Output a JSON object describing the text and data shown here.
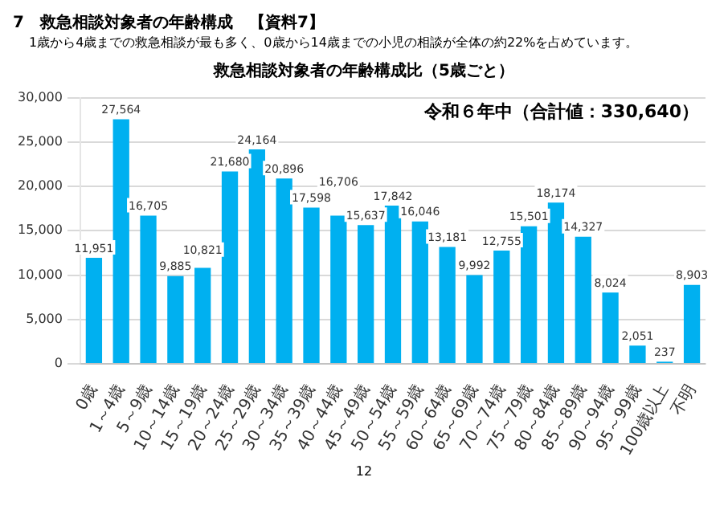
{
  "chart_data": {
    "type": "bar",
    "title": "救急相談対象者の年齢構成比（5歳ごと）",
    "annotations": [
      "7　救急相談対象者の年齢構成　【資料7】",
      "1歳から4歳までの救急相談が最も多く、0歳から14歳までの小児の相談が全体の約22%を占めています。",
      "令和６年中（合計値：330,640）",
      "12"
    ],
    "categories": [
      "0歳",
      "1～4歳",
      "5～9歳",
      "10～14歳",
      "15～19歳",
      "20～24歳",
      "25～29歳",
      "30～34歳",
      "35～39歳",
      "40～44歳",
      "45～49歳",
      "50～54歳",
      "55～59歳",
      "60～64歳",
      "65～69歳",
      "70～74歳",
      "75～79歳",
      "80～84歳",
      "85～89歳",
      "90～94歳",
      "95～99歳",
      "100歳以上",
      "不明"
    ],
    "values": [
      11951,
      27564,
      16705,
      9885,
      10821,
      21680,
      24164,
      20896,
      17598,
      16706,
      15637,
      17842,
      16046,
      13181,
      9992,
      12755,
      15501,
      18174,
      14327,
      8024,
      2051,
      237,
      8903
    ],
    "value_labels": [
      "11,951",
      "27,564",
      "16,705",
      "9,885",
      "10,821",
      "21,680",
      "24,164",
      "20,896",
      "17,598",
      "16,706",
      "15,637",
      "17,842",
      "16,046",
      "13,181",
      "9,992",
      "12,755",
      "15,501",
      "18,174",
      "14,327",
      "8,024",
      "2,051",
      "237",
      "8,903"
    ],
    "color": "#00b0f0",
    "ylim": [
      0,
      30000
    ],
    "yticks": [
      {
        "value": 0,
        "label": "0"
      },
      {
        "value": 5000,
        "label": "5,000"
      },
      {
        "value": 10000,
        "label": "10,000"
      },
      {
        "value": 15000,
        "label": "15,000"
      },
      {
        "value": 20000,
        "label": "20,000"
      },
      {
        "value": 25000,
        "label": "25,000"
      },
      {
        "value": 30000,
        "label": "30,000"
      }
    ],
    "grid": "y"
  }
}
